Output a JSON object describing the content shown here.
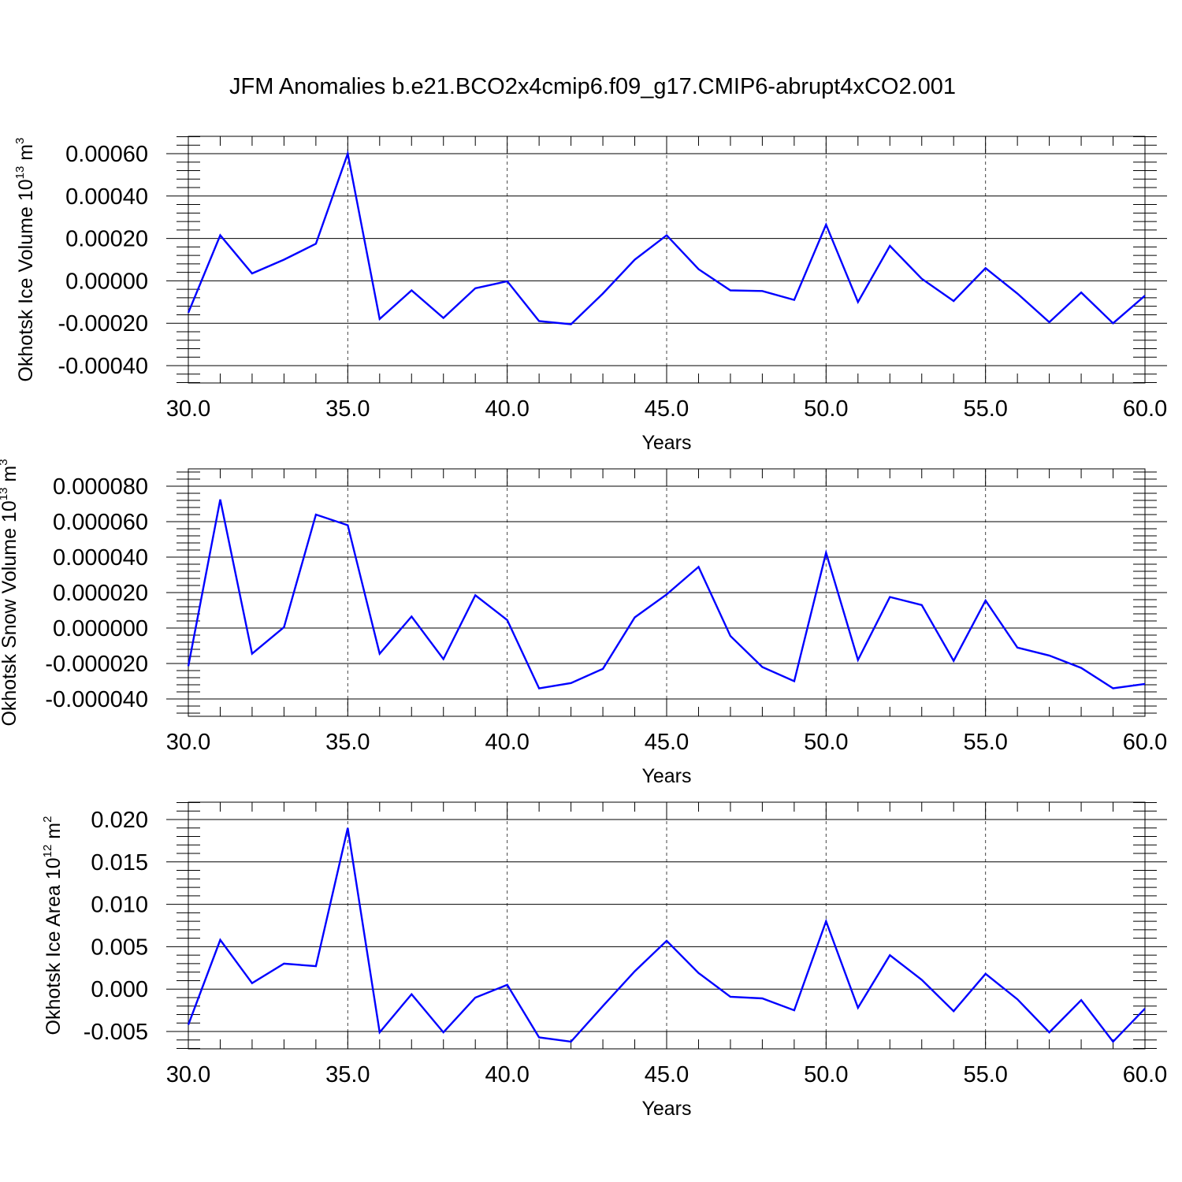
{
  "title": "JFM Anomalies b.e21.BCO2x4cmip6.f09_g17.CMIP6-abrupt4xCO2.001",
  "colors": {
    "line": "#0000ff",
    "axis": "#000000",
    "grid": "#444444"
  },
  "chart_data": [
    {
      "type": "line",
      "xlabel": "Years",
      "ylabel": "Okhotsk Ice Volume 10",
      "ylabel_exp": "13",
      "ylabel_unit": " m",
      "ylabel_unit_exp": "3",
      "xlim": [
        30,
        60
      ],
      "ylim": [
        -0.0004,
        0.0006
      ],
      "x_ticks": [
        30,
        35,
        40,
        45,
        50,
        55,
        60
      ],
      "x_tick_labels": [
        "30.0",
        "35.0",
        "40.0",
        "45.0",
        "50.0",
        "55.0",
        "60.0"
      ],
      "y_ticks": [
        -0.0004,
        -0.0002,
        0,
        0.0002,
        0.0004,
        0.0006
      ],
      "y_tick_labels": [
        "-0.00040",
        "-0.00020",
        "0.00000",
        "0.00020",
        "0.00040",
        "0.00060"
      ],
      "grid": "x-dashed",
      "x": [
        30,
        31,
        32,
        33,
        34,
        35,
        36,
        37,
        38,
        39,
        40,
        41,
        42,
        43,
        44,
        45,
        46,
        47,
        48,
        49,
        50,
        51,
        52,
        53,
        54,
        55,
        56,
        57,
        58,
        59,
        60
      ],
      "series": [
        {
          "values": [
            -0.00015,
            0.000215,
            3.5e-05,
            0.0001,
            0.000175,
            0.0006,
            -0.00018,
            -4.5e-05,
            -0.000175,
            -3.5e-05,
            -2e-06,
            -0.00019,
            -0.000205,
            -6e-05,
            0.0001,
            0.000215,
            5.5e-05,
            -4.5e-05,
            -4.8e-05,
            -9e-05,
            0.000265,
            -0.0001,
            0.000165,
            1e-05,
            -9.5e-05,
            6e-05,
            -6e-05,
            -0.000195,
            -5.5e-05,
            -0.0002,
            -7e-05
          ]
        }
      ]
    },
    {
      "type": "line",
      "xlabel": "Years",
      "ylabel": "Okhotsk Snow Volume 10",
      "ylabel_exp": "13",
      "ylabel_unit": " m",
      "ylabel_unit_exp": "3",
      "xlim": [
        30,
        60
      ],
      "ylim": [
        -4e-05,
        8e-05
      ],
      "x_ticks": [
        30,
        35,
        40,
        45,
        50,
        55,
        60
      ],
      "x_tick_labels": [
        "30.0",
        "35.0",
        "40.0",
        "45.0",
        "50.0",
        "55.0",
        "60.0"
      ],
      "y_ticks": [
        -4e-05,
        -2e-05,
        0,
        2e-05,
        4e-05,
        6e-05,
        8e-05
      ],
      "y_tick_labels": [
        "-0.000040",
        "-0.000020",
        "0.000000",
        "0.000020",
        "0.000040",
        "0.000060",
        "0.000080"
      ],
      "grid": "x-dashed",
      "x": [
        30,
        31,
        32,
        33,
        34,
        35,
        36,
        37,
        38,
        39,
        40,
        41,
        42,
        43,
        44,
        45,
        46,
        47,
        48,
        49,
        50,
        51,
        52,
        53,
        54,
        55,
        56,
        57,
        58,
        59,
        60
      ],
      "series": [
        {
          "values": [
            -2.15e-05,
            7.25e-05,
            -1.45e-05,
            5e-07,
            6.4e-05,
            5.8e-05,
            -1.45e-05,
            6.5e-06,
            -1.75e-05,
            1.85e-05,
            4.5e-06,
            -3.4e-05,
            -3.1e-05,
            -2.3e-05,
            6e-06,
            1.9e-05,
            3.45e-05,
            -4.5e-06,
            -2.2e-05,
            -3e-05,
            4.25e-05,
            -1.8e-05,
            1.75e-05,
            1.3e-05,
            -1.85e-05,
            1.55e-05,
            -1.1e-05,
            -1.55e-05,
            -2.25e-05,
            -3.4e-05,
            -3.15e-05
          ]
        }
      ]
    },
    {
      "type": "line",
      "xlabel": "Years",
      "ylabel": "Okhotsk Ice Area 10",
      "ylabel_exp": "12",
      "ylabel_unit": " m",
      "ylabel_unit_exp": "2",
      "xlim": [
        30,
        60
      ],
      "ylim": [
        -0.008,
        0.02
      ],
      "x_ticks": [
        30,
        35,
        40,
        45,
        50,
        55,
        60
      ],
      "x_tick_labels": [
        "30.0",
        "35.0",
        "40.0",
        "45.0",
        "50.0",
        "55.0",
        "60.0"
      ],
      "y_ticks": [
        -0.005,
        0,
        0.005,
        0.01,
        0.015,
        0.02
      ],
      "y_tick_labels": [
        "-0.005",
        "0.000",
        "0.005",
        "0.010",
        "0.015",
        "0.020"
      ],
      "grid": "x-dashed",
      "x": [
        30,
        31,
        32,
        33,
        34,
        35,
        36,
        37,
        38,
        39,
        40,
        41,
        42,
        43,
        44,
        45,
        46,
        47,
        48,
        49,
        50,
        51,
        52,
        53,
        54,
        55,
        56,
        57,
        58,
        59,
        60
      ],
      "series": [
        {
          "values": [
            -0.0042,
            0.0058,
            0.0007,
            0.003,
            0.0027,
            0.019,
            -0.0051,
            -0.0006,
            -0.0051,
            -0.001,
            0.0005,
            -0.0057,
            -0.0062,
            -0.002,
            0.0021,
            0.0057,
            0.0019,
            -0.0009,
            -0.0011,
            -0.0025,
            0.008,
            -0.0022,
            0.004,
            0.0011,
            -0.0026,
            0.0018,
            -0.0012,
            -0.0051,
            -0.0013,
            -0.0062,
            -0.0023
          ]
        }
      ]
    }
  ]
}
